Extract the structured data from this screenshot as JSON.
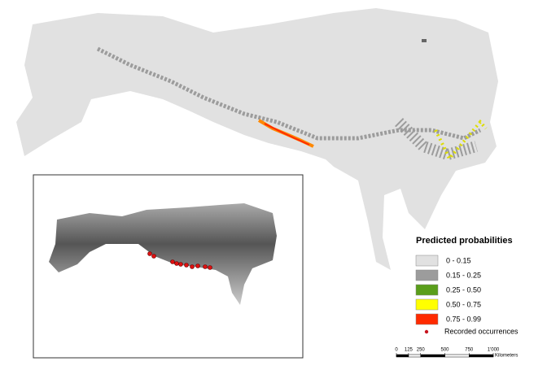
{
  "legend": {
    "title": "Predicted probabilities",
    "items": [
      {
        "label": "0 - 0.15",
        "color": "#e1e1e1"
      },
      {
        "label": "0.15 - 0.25",
        "color": "#9c9c9c"
      },
      {
        "label": "0.25 - 0.50",
        "color": "#5a9e1a"
      },
      {
        "label": "0.50 - 0.75",
        "color": "#ffff00"
      },
      {
        "label": "0.75 - 0.99",
        "color": "#ff2a00"
      }
    ],
    "occurrences": {
      "label": "Recorded occurrences",
      "color": "#c8141e"
    }
  },
  "scale_bar": {
    "ticks": [
      0,
      125,
      250,
      500,
      750,
      {
        "value": 1000,
        "label": "1'000"
      }
    ],
    "unit": "Kilometers"
  }
}
